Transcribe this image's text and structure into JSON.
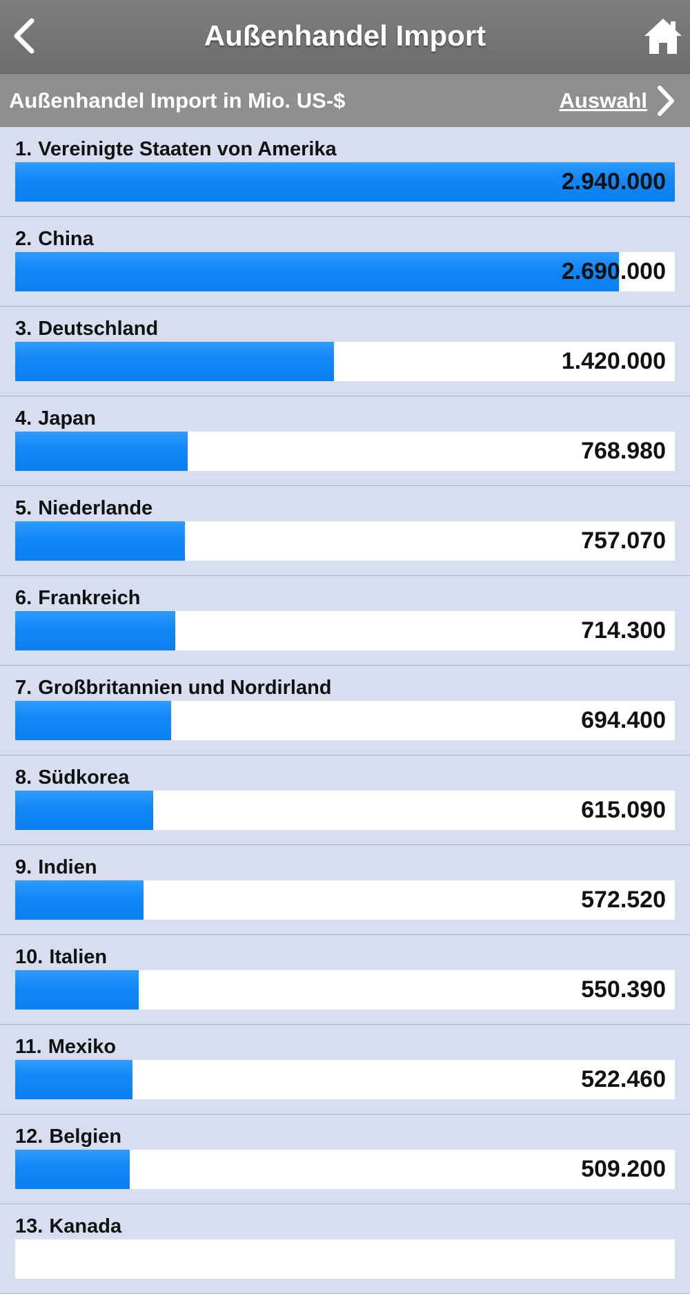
{
  "header": {
    "title": "Außenhandel Import",
    "back_icon": "chevron-left-icon",
    "home_icon": "home-icon"
  },
  "subheader": {
    "subtitle": "Außenhandel Import in Mio. US-$",
    "select_label": "Auswahl",
    "select_icon": "chevron-right-icon"
  },
  "colors": {
    "bar": "#1287f6",
    "topbar": "#727272",
    "subbar": "#8f8f8f",
    "background": "#d8def0"
  },
  "chart_data": {
    "type": "bar",
    "categories": [
      "Vereinigte Staaten von Amerika",
      "China",
      "Deutschland",
      "Japan",
      "Niederlande",
      "Frankreich",
      "Großbritannien und Nordirland",
      "Südkorea",
      "Indien",
      "Italien",
      "Mexiko",
      "Belgien",
      "Kanada"
    ],
    "values": [
      2940000,
      2690000,
      1420000,
      768980,
      757070,
      714300,
      694400,
      615090,
      572520,
      550390,
      522460,
      509200,
      null
    ],
    "ylim": [
      0,
      2940000
    ]
  },
  "rows": [
    {
      "rank": "1.",
      "name": "Vereinigte Staaten von Amerika",
      "value_label": "2.940.000"
    },
    {
      "rank": "2.",
      "name": "China",
      "value_label": "2.690.000"
    },
    {
      "rank": "3.",
      "name": "Deutschland",
      "value_label": "1.420.000"
    },
    {
      "rank": "4.",
      "name": "Japan",
      "value_label": "768.980"
    },
    {
      "rank": "5.",
      "name": "Niederlande",
      "value_label": "757.070"
    },
    {
      "rank": "6.",
      "name": "Frankreich",
      "value_label": "714.300"
    },
    {
      "rank": "7.",
      "name": "Großbritannien und Nordirland",
      "value_label": "694.400"
    },
    {
      "rank": "8.",
      "name": "Südkorea",
      "value_label": "615.090"
    },
    {
      "rank": "9.",
      "name": "Indien",
      "value_label": "572.520"
    },
    {
      "rank": "10.",
      "name": "Italien",
      "value_label": "550.390"
    },
    {
      "rank": "11.",
      "name": "Mexiko",
      "value_label": "522.460"
    },
    {
      "rank": "12.",
      "name": "Belgien",
      "value_label": "509.200"
    },
    {
      "rank": "13.",
      "name": "Kanada",
      "value_label": ""
    }
  ]
}
